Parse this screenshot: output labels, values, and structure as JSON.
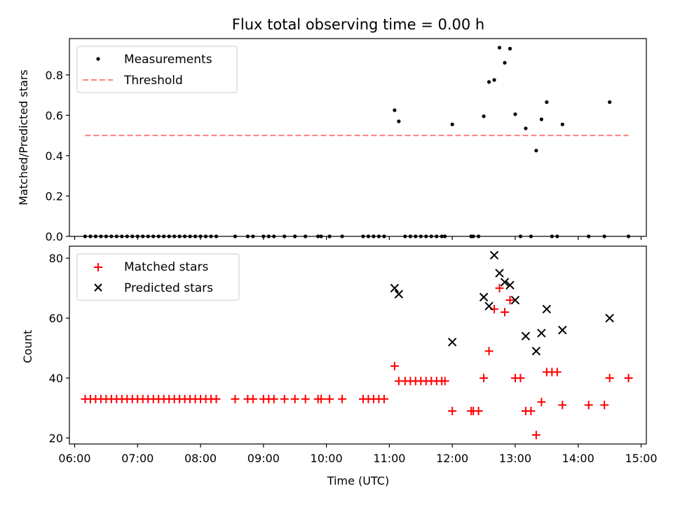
{
  "chart_data": [
    {
      "type": "scatter",
      "title": "Flux total observing time = 0.00 h",
      "xlabel": "",
      "ylabel": "Matched/Predicted stars",
      "xlim": [
        "05:55",
        "15:05"
      ],
      "ylim": [
        0,
        0.98
      ],
      "yticks": [
        0.0,
        0.2,
        0.4,
        0.6,
        0.8
      ],
      "ytick_labels": [
        "0.0",
        "0.2",
        "0.4",
        "0.6",
        "0.8"
      ],
      "grid": false,
      "legend": "upper left",
      "series": [
        {
          "name": "Measurements",
          "marker": "dot",
          "color": "#000000",
          "points": [
            [
              "06:10",
              0
            ],
            [
              "06:15",
              0
            ],
            [
              "06:20",
              0
            ],
            [
              "06:25",
              0
            ],
            [
              "06:30",
              0
            ],
            [
              "06:35",
              0
            ],
            [
              "06:40",
              0
            ],
            [
              "06:45",
              0
            ],
            [
              "06:50",
              0
            ],
            [
              "06:55",
              0
            ],
            [
              "07:00",
              0
            ],
            [
              "07:05",
              0
            ],
            [
              "07:10",
              0
            ],
            [
              "07:15",
              0
            ],
            [
              "07:20",
              0
            ],
            [
              "07:25",
              0
            ],
            [
              "07:30",
              0
            ],
            [
              "07:35",
              0
            ],
            [
              "07:40",
              0
            ],
            [
              "07:45",
              0
            ],
            [
              "07:50",
              0
            ],
            [
              "07:55",
              0
            ],
            [
              "08:00",
              0
            ],
            [
              "08:05",
              0
            ],
            [
              "08:10",
              0
            ],
            [
              "08:15",
              0
            ],
            [
              "08:33",
              0
            ],
            [
              "08:45",
              0
            ],
            [
              "08:50",
              0
            ],
            [
              "09:00",
              0
            ],
            [
              "09:05",
              0
            ],
            [
              "09:10",
              0
            ],
            [
              "09:20",
              0
            ],
            [
              "09:30",
              0
            ],
            [
              "09:40",
              0
            ],
            [
              "09:52",
              0
            ],
            [
              "09:55",
              0
            ],
            [
              "10:03",
              0
            ],
            [
              "10:15",
              0
            ],
            [
              "10:35",
              0
            ],
            [
              "10:40",
              0
            ],
            [
              "10:45",
              0
            ],
            [
              "10:50",
              0
            ],
            [
              "10:55",
              0
            ],
            [
              "11:05",
              0.625
            ],
            [
              "11:09",
              0.57
            ],
            [
              "11:15",
              0
            ],
            [
              "11:20",
              0
            ],
            [
              "11:25",
              0
            ],
            [
              "11:30",
              0
            ],
            [
              "11:35",
              0
            ],
            [
              "11:40",
              0
            ],
            [
              "11:45",
              0
            ],
            [
              "11:50",
              0
            ],
            [
              "11:53",
              0
            ],
            [
              "12:00",
              0.555
            ],
            [
              "12:18",
              0
            ],
            [
              "12:20",
              0
            ],
            [
              "12:25",
              0
            ],
            [
              "12:30",
              0.595
            ],
            [
              "12:35",
              0.765
            ],
            [
              "12:40",
              0.775
            ],
            [
              "12:45",
              0.935
            ],
            [
              "12:50",
              0.86
            ],
            [
              "12:55",
              0.93
            ],
            [
              "13:00",
              0.605
            ],
            [
              "13:05",
              0
            ],
            [
              "13:10",
              0.535
            ],
            [
              "13:15",
              0
            ],
            [
              "13:20",
              0.425
            ],
            [
              "13:25",
              0.58
            ],
            [
              "13:30",
              0.665
            ],
            [
              "13:35",
              0
            ],
            [
              "13:40",
              0
            ],
            [
              "13:45",
              0.555
            ],
            [
              "14:10",
              0
            ],
            [
              "14:25",
              0
            ],
            [
              "14:30",
              0.665
            ],
            [
              "14:48",
              0
            ]
          ]
        },
        {
          "name": "Threshold",
          "marker": "dashed-line",
          "color": "#ff7f7f",
          "points": [
            [
              "06:10",
              0.5
            ],
            [
              "14:48",
              0.5
            ]
          ]
        }
      ]
    },
    {
      "type": "scatter",
      "title": "",
      "xlabel": "Time (UTC)",
      "ylabel": "Count",
      "xlim": [
        "05:55",
        "15:05"
      ],
      "ylim": [
        18,
        84
      ],
      "xticks": [
        "06:00",
        "07:00",
        "08:00",
        "09:00",
        "10:00",
        "11:00",
        "12:00",
        "13:00",
        "14:00",
        "15:00"
      ],
      "yticks": [
        20,
        40,
        60,
        80
      ],
      "ytick_labels": [
        "20",
        "40",
        "60",
        "80"
      ],
      "grid": false,
      "legend": "upper left",
      "series": [
        {
          "name": "Matched stars",
          "marker": "plus",
          "color": "#ff0000",
          "points": [
            [
              "06:10",
              33
            ],
            [
              "06:15",
              33
            ],
            [
              "06:20",
              33
            ],
            [
              "06:25",
              33
            ],
            [
              "06:30",
              33
            ],
            [
              "06:35",
              33
            ],
            [
              "06:40",
              33
            ],
            [
              "06:45",
              33
            ],
            [
              "06:50",
              33
            ],
            [
              "06:55",
              33
            ],
            [
              "07:00",
              33
            ],
            [
              "07:05",
              33
            ],
            [
              "07:10",
              33
            ],
            [
              "07:15",
              33
            ],
            [
              "07:20",
              33
            ],
            [
              "07:25",
              33
            ],
            [
              "07:30",
              33
            ],
            [
              "07:35",
              33
            ],
            [
              "07:40",
              33
            ],
            [
              "07:45",
              33
            ],
            [
              "07:50",
              33
            ],
            [
              "07:55",
              33
            ],
            [
              "08:00",
              33
            ],
            [
              "08:05",
              33
            ],
            [
              "08:10",
              33
            ],
            [
              "08:15",
              33
            ],
            [
              "08:33",
              33
            ],
            [
              "08:45",
              33
            ],
            [
              "08:50",
              33
            ],
            [
              "09:00",
              33
            ],
            [
              "09:05",
              33
            ],
            [
              "09:10",
              33
            ],
            [
              "09:20",
              33
            ],
            [
              "09:30",
              33
            ],
            [
              "09:40",
              33
            ],
            [
              "09:52",
              33
            ],
            [
              "09:55",
              33
            ],
            [
              "10:03",
              33
            ],
            [
              "10:15",
              33
            ],
            [
              "10:35",
              33
            ],
            [
              "10:40",
              33
            ],
            [
              "10:45",
              33
            ],
            [
              "10:50",
              33
            ],
            [
              "10:55",
              33
            ],
            [
              "11:05",
              44
            ],
            [
              "11:09",
              39
            ],
            [
              "11:15",
              39
            ],
            [
              "11:20",
              39
            ],
            [
              "11:25",
              39
            ],
            [
              "11:30",
              39
            ],
            [
              "11:35",
              39
            ],
            [
              "11:40",
              39
            ],
            [
              "11:45",
              39
            ],
            [
              "11:50",
              39
            ],
            [
              "11:53",
              39
            ],
            [
              "12:00",
              29
            ],
            [
              "12:18",
              29
            ],
            [
              "12:20",
              29
            ],
            [
              "12:25",
              29
            ],
            [
              "12:30",
              40
            ],
            [
              "12:35",
              49
            ],
            [
              "12:40",
              63
            ],
            [
              "12:45",
              70
            ],
            [
              "12:50",
              62
            ],
            [
              "12:55",
              66
            ],
            [
              "13:00",
              40
            ],
            [
              "13:05",
              40
            ],
            [
              "13:10",
              29
            ],
            [
              "13:15",
              29
            ],
            [
              "13:20",
              21
            ],
            [
              "13:25",
              32
            ],
            [
              "13:30",
              42
            ],
            [
              "13:35",
              42
            ],
            [
              "13:40",
              42
            ],
            [
              "13:45",
              31
            ],
            [
              "14:10",
              31
            ],
            [
              "14:25",
              31
            ],
            [
              "14:30",
              40
            ],
            [
              "14:48",
              40
            ]
          ]
        },
        {
          "name": "Predicted stars",
          "marker": "x",
          "color": "#000000",
          "points": [
            [
              "11:05",
              70
            ],
            [
              "11:09",
              68
            ],
            [
              "12:00",
              52
            ],
            [
              "12:30",
              67
            ],
            [
              "12:35",
              64
            ],
            [
              "12:40",
              81
            ],
            [
              "12:45",
              75
            ],
            [
              "12:50",
              72
            ],
            [
              "12:55",
              71
            ],
            [
              "13:00",
              66
            ],
            [
              "13:10",
              54
            ],
            [
              "13:20",
              49
            ],
            [
              "13:25",
              55
            ],
            [
              "13:30",
              63
            ],
            [
              "13:45",
              56
            ],
            [
              "14:30",
              60
            ]
          ]
        }
      ]
    }
  ]
}
